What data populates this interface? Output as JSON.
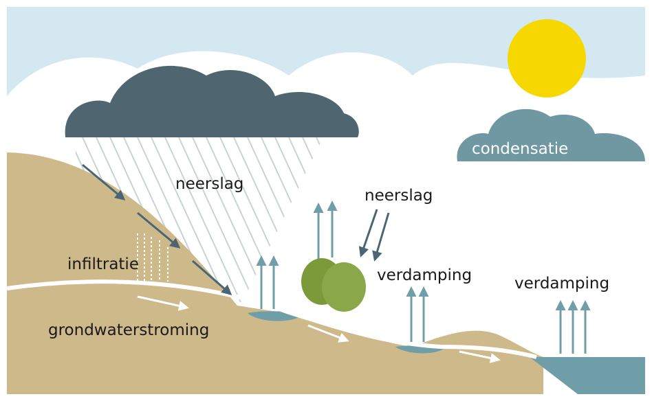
{
  "labels": [
    "neerslag",
    "neerslag",
    "condensatie",
    "infiltratie",
    "verdamping",
    "verdamping",
    "grondwaterstroming"
  ]
}
